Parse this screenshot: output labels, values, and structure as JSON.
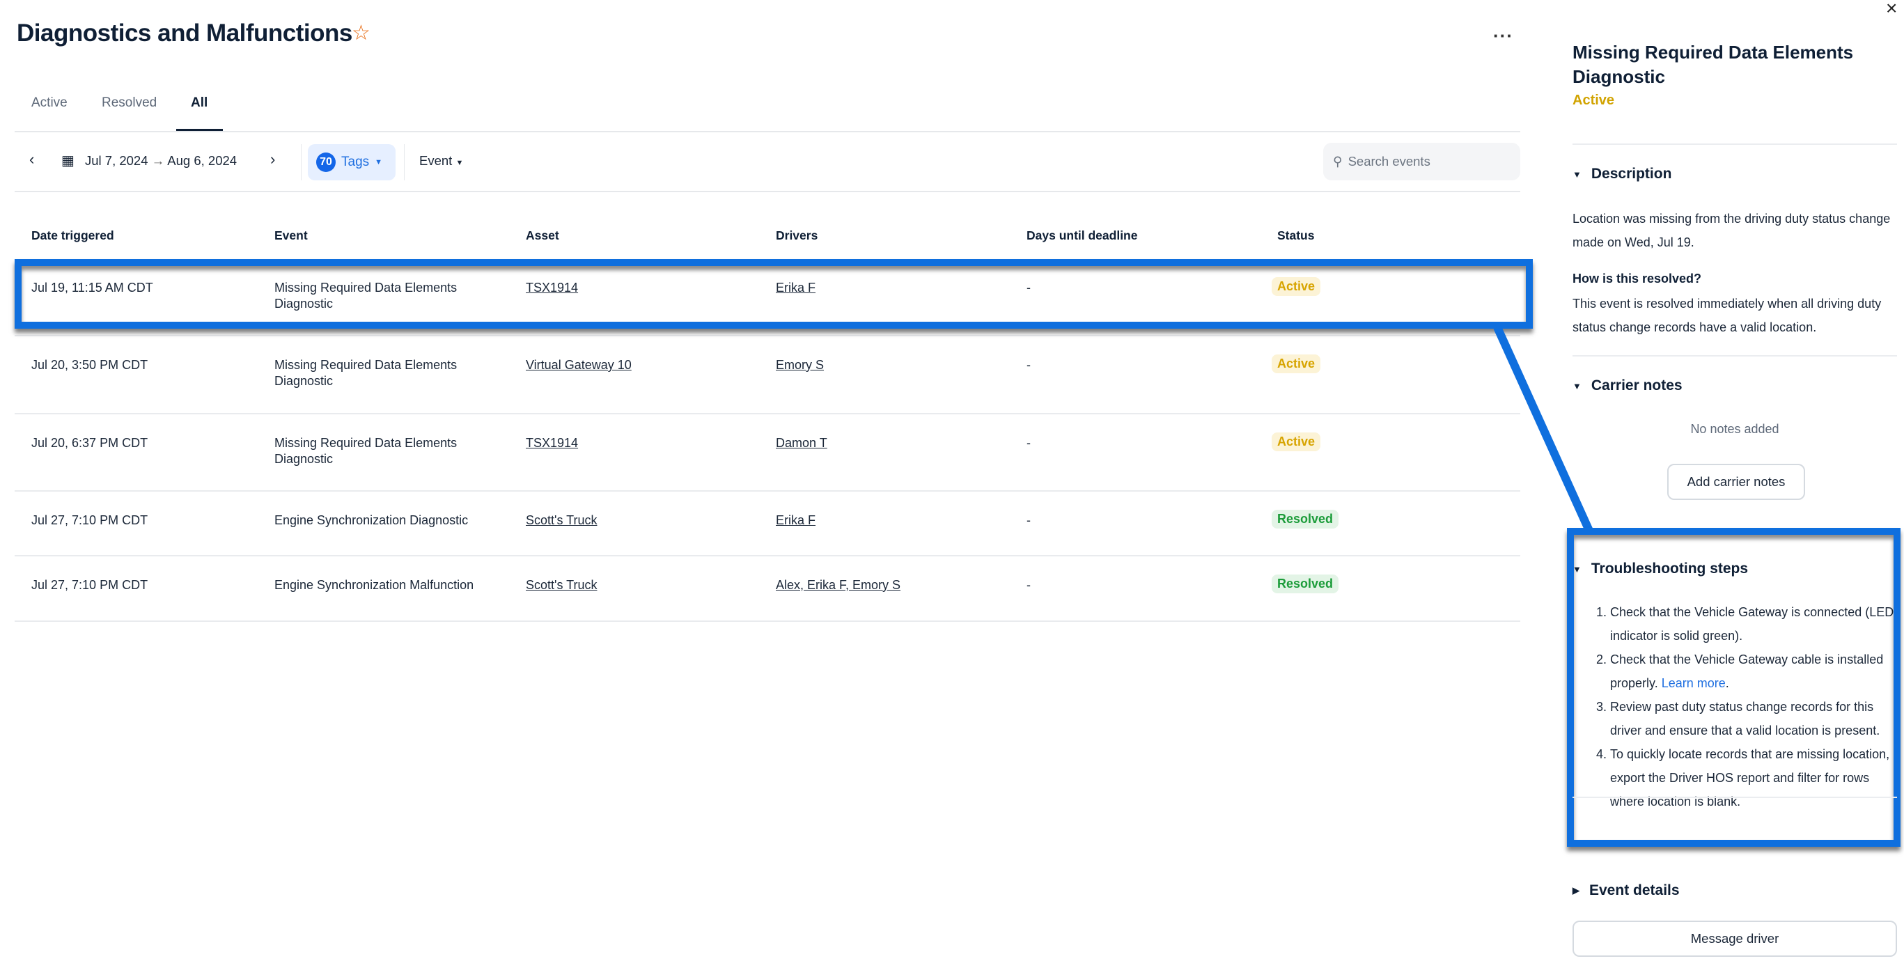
{
  "header": {
    "title": "Diagnostics and Malfunctions",
    "more_label": "···"
  },
  "tabs": [
    {
      "label": "Active"
    },
    {
      "label": "Resolved"
    },
    {
      "label": "All",
      "selected": true
    }
  ],
  "filters": {
    "date_start": "Jul 7, 2024",
    "arrow": "→",
    "date_end": "Aug 6, 2024",
    "tags_count": "70",
    "tags_label": "Tags",
    "event_label": "Event",
    "search_placeholder": "Search events"
  },
  "table": {
    "columns": [
      "Date triggered",
      "Event",
      "Asset",
      "Drivers",
      "Days until deadline",
      "Status"
    ],
    "rows": [
      {
        "date": "Jul 19, 11:15 AM CDT",
        "event": "Missing Required Data Elements Diagnostic",
        "asset": "TSX1914",
        "drivers": "Erika F",
        "days": "-",
        "status": "Active"
      },
      {
        "date": "Jul 20, 3:50 PM CDT",
        "event": "Missing Required Data Elements Diagnostic",
        "asset": "Virtual Gateway 10",
        "drivers": "Emory S",
        "days": "-",
        "status": "Active"
      },
      {
        "date": "Jul 20, 6:37 PM CDT",
        "event": "Missing Required Data Elements Diagnostic",
        "asset": "TSX1914",
        "drivers": "Damon T",
        "days": "-",
        "status": "Active"
      },
      {
        "date": "Jul 27, 7:10 PM CDT",
        "event": "Engine Synchronization Diagnostic",
        "asset": "Scott's Truck",
        "drivers": "Erika F",
        "days": "-",
        "status": "Resolved"
      },
      {
        "date": "Jul 27, 7:10 PM CDT",
        "event": "Engine Synchronization Malfunction",
        "asset": "Scott's Truck",
        "drivers": "Alex, Erika F, Emory S",
        "days": "-",
        "status": "Resolved"
      }
    ]
  },
  "panel": {
    "title": "Missing Required Data Elements Diagnostic",
    "status": "Active",
    "description": {
      "heading": "Description",
      "text": "Location was missing from the driving duty status change made on Wed, Jul 19.",
      "resolve_heading": "How is this resolved?",
      "resolve_text": "This event is resolved immediately when all driving duty status change records have a valid location."
    },
    "carrier_notes": {
      "heading": "Carrier notes",
      "empty": "No notes added",
      "button": "Add carrier notes"
    },
    "troubleshooting": {
      "heading": "Troubleshooting steps",
      "steps": [
        "Check that the Vehicle Gateway is connected (LED indicator is solid green).",
        "Check that the Vehicle Gateway cable is installed properly.",
        "Review past duty status change records for this driver and ensure that a valid location is present.",
        "To quickly locate records that are missing location, export the Driver HOS report and filter for rows where location is blank."
      ],
      "learn_more": "Learn more",
      "learn_more_suffix": "."
    },
    "event_details": {
      "heading": "Event details"
    },
    "message_button": "Message driver"
  },
  "colors": {
    "highlight": "#0f6fde",
    "active": "#d7a400",
    "resolved": "#1c9c3a",
    "link": "#1f6fe0"
  }
}
